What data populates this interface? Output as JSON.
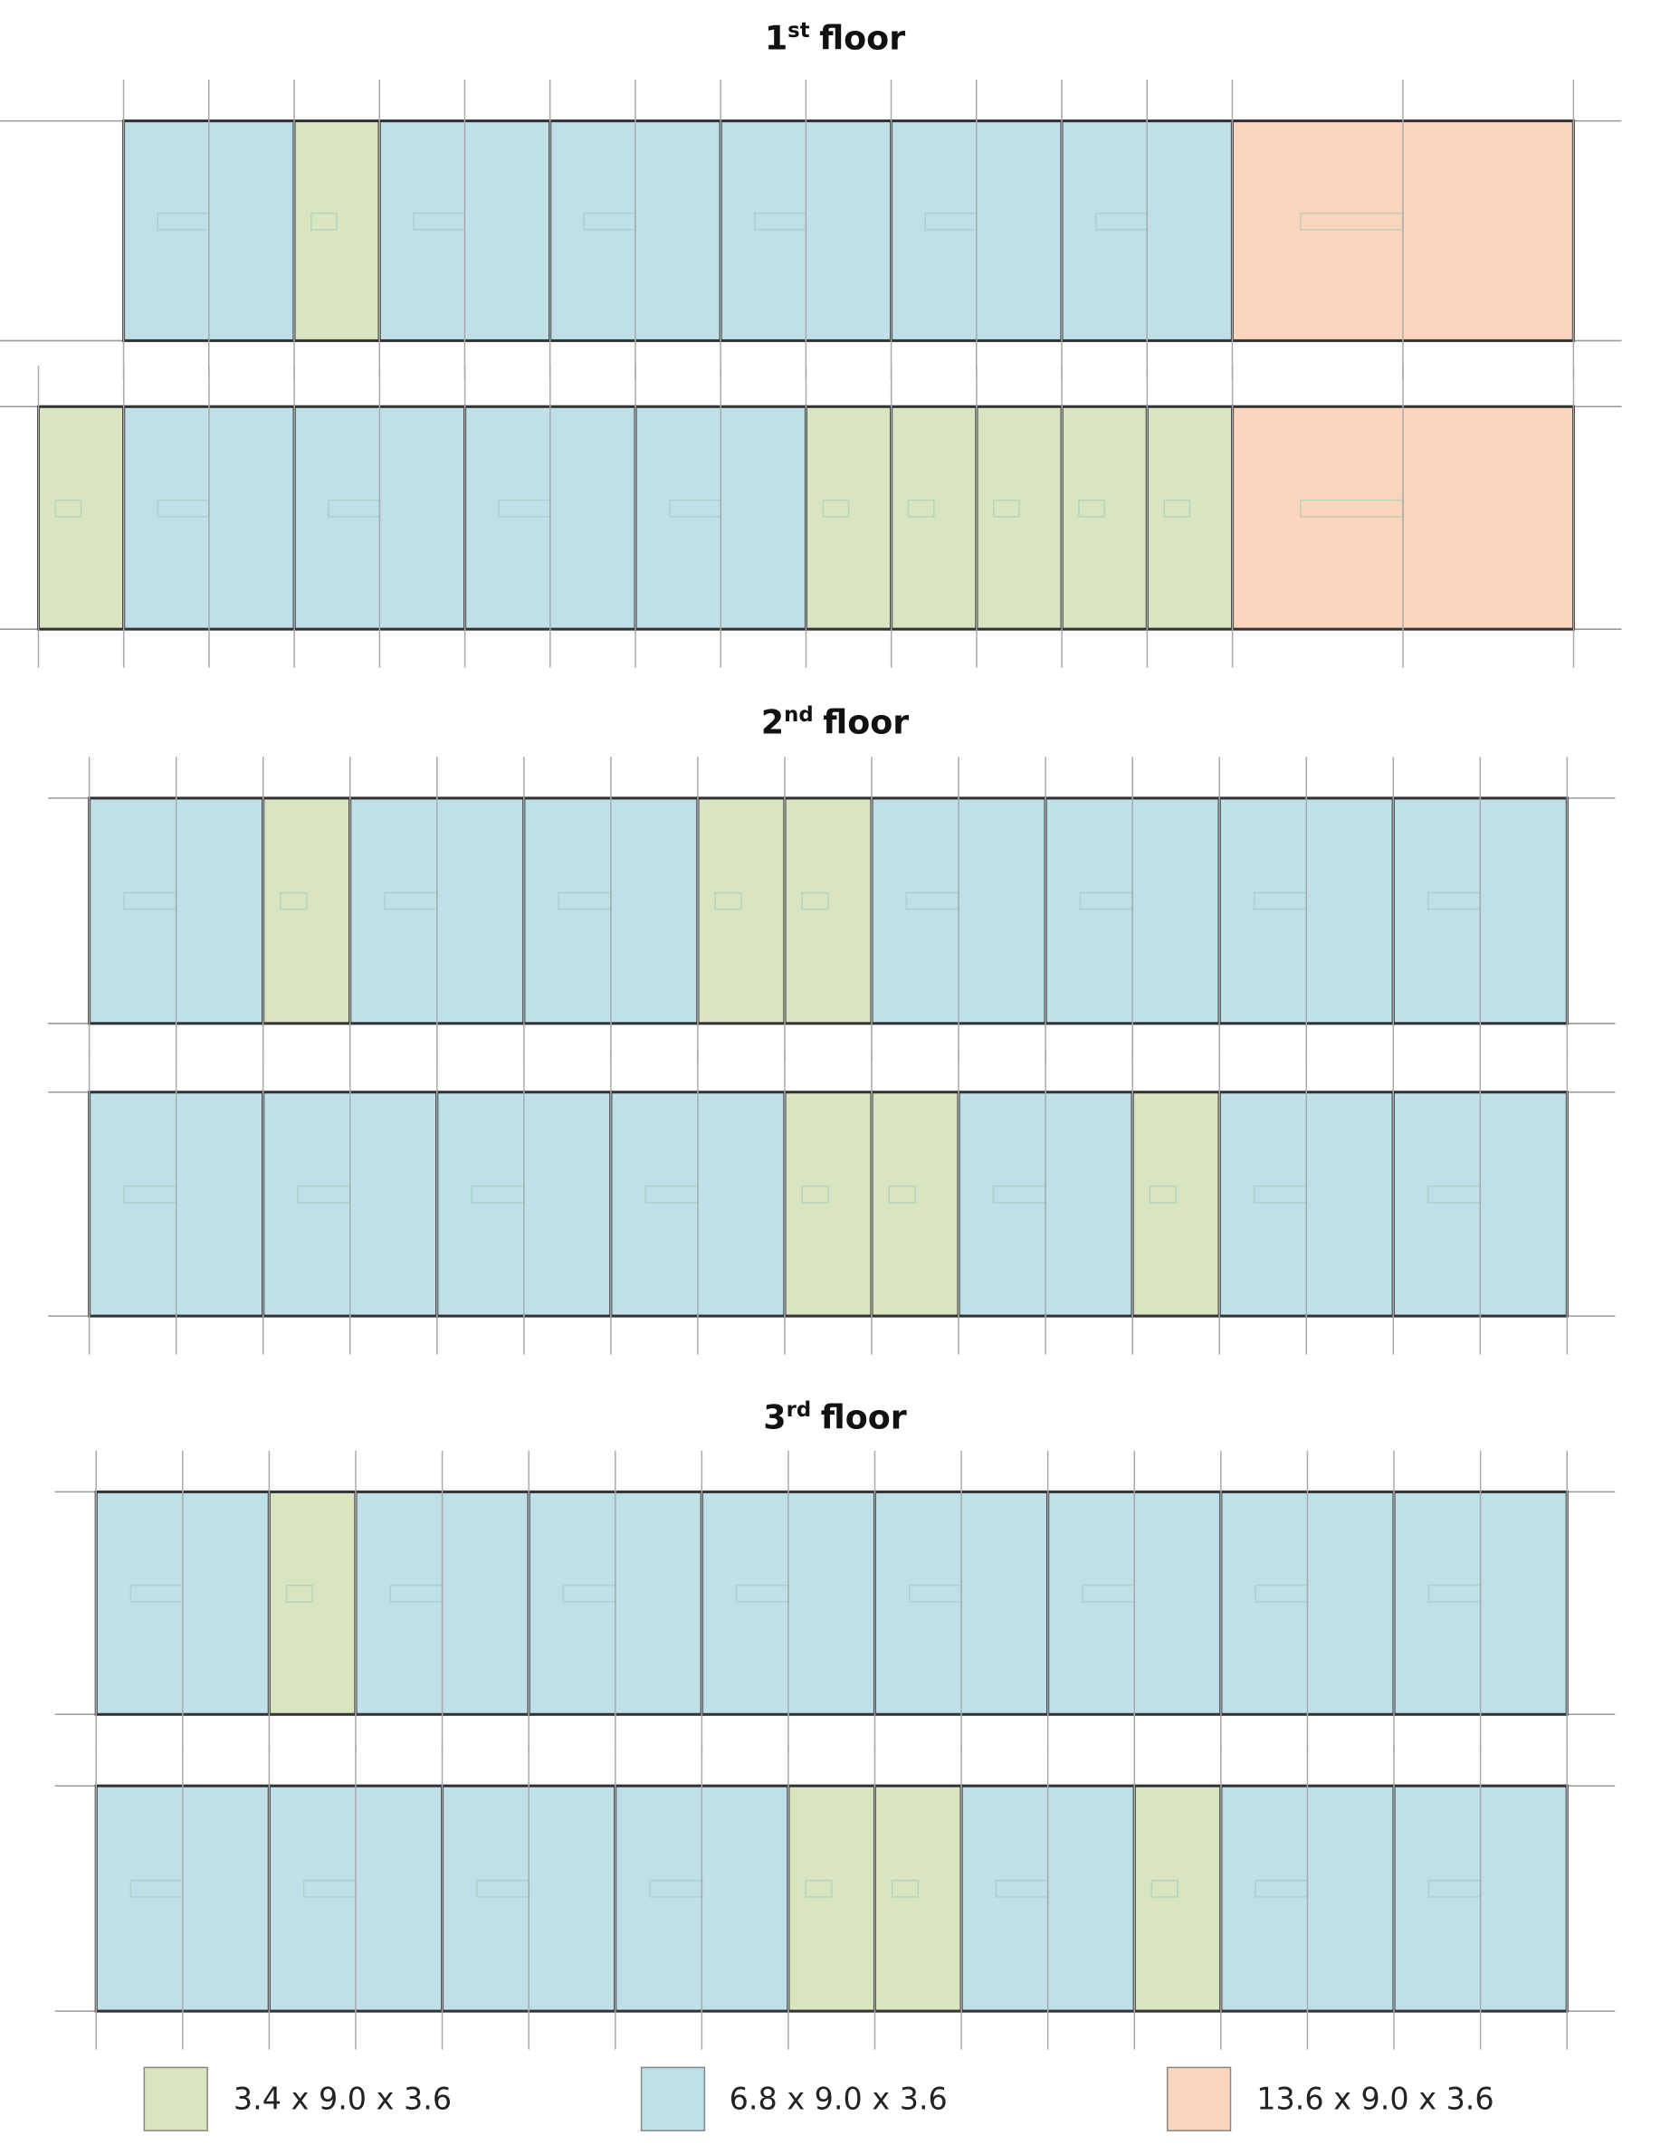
{
  "floors": [
    {
      "number": "1",
      "suffix": "st",
      "word": "floor"
    },
    {
      "number": "2",
      "suffix": "nd",
      "word": "floor"
    },
    {
      "number": "3",
      "suffix": "rd",
      "word": "floor"
    }
  ],
  "legend": [
    {
      "label": "3.4 x 9.0 x 3.6",
      "color": "#d9e5c1"
    },
    {
      "label": "6.8 x 9.0 x 3.6",
      "color": "#bfe0e8"
    },
    {
      "label": "13.6 x 9.0 x 3.6",
      "color": "#fbd6bc"
    }
  ]
}
